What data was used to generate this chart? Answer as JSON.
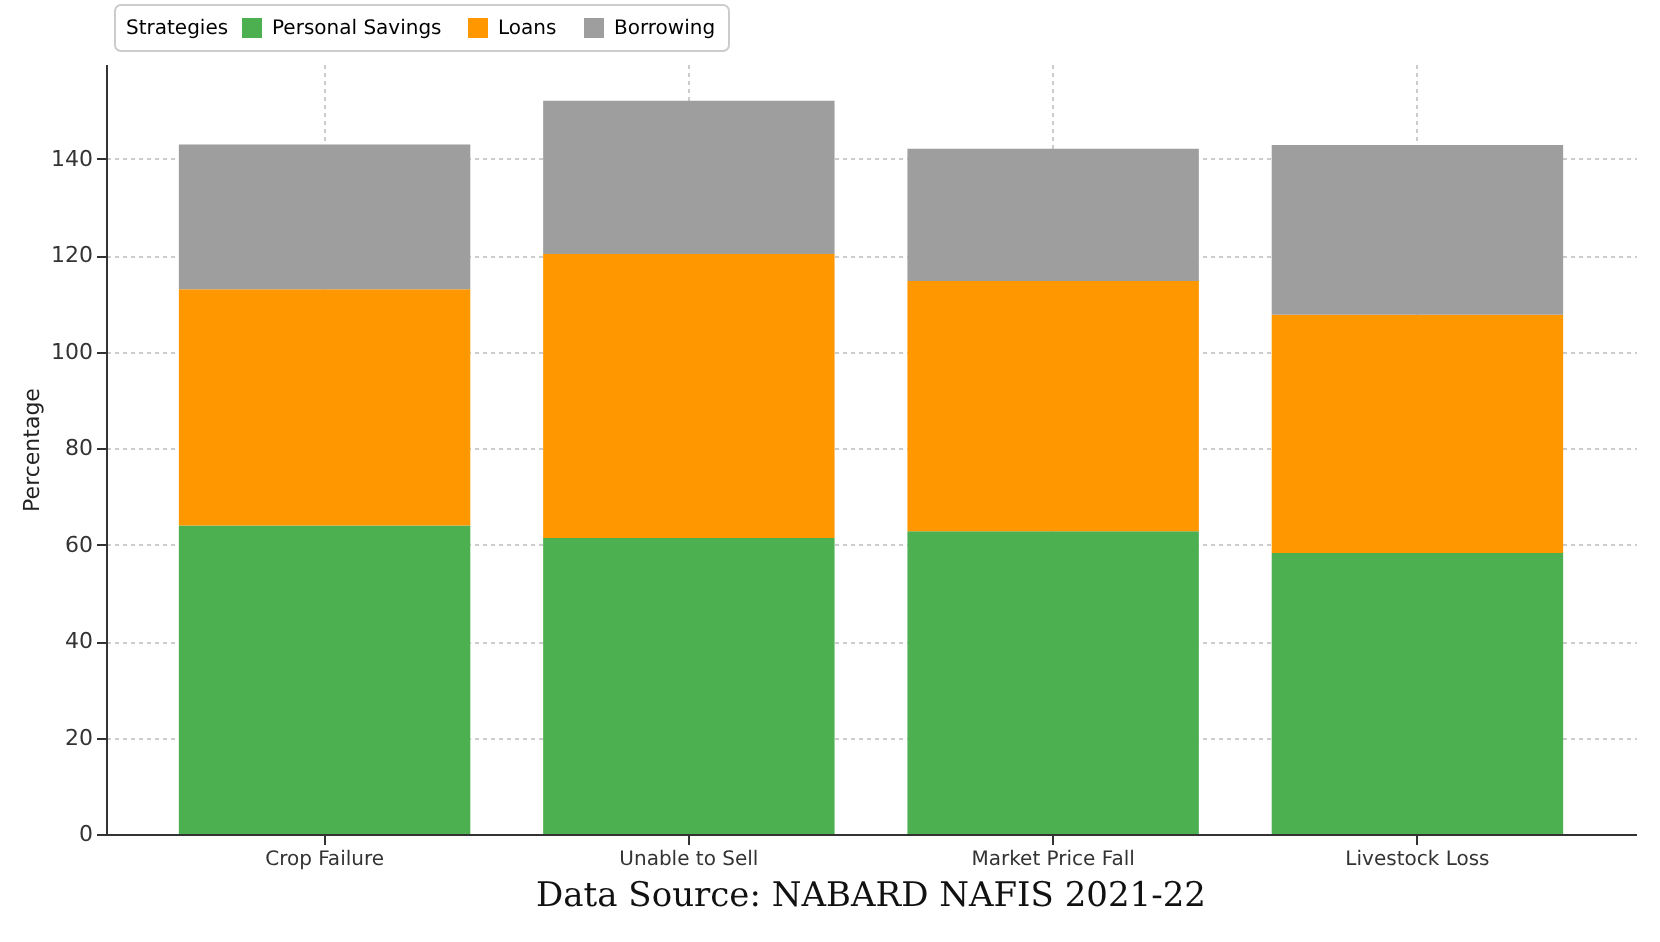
{
  "chart_data": {
    "type": "bar",
    "stacked": true,
    "ylabel": "Percentage",
    "legend_title": "Strategies",
    "legend": "top left",
    "grid": true,
    "categories": [
      "Crop Failure",
      "Unable to Sell",
      "Market Price Fall",
      "Livestock Loss"
    ],
    "series": [
      {
        "name": "Personal Savings",
        "color": "#4caf50",
        "values": [
          64,
          61.4,
          62.8,
          58.3
        ]
      },
      {
        "name": "Loans",
        "color": "#ff9800",
        "values": [
          49,
          58.9,
          51.9,
          49.4
        ]
      },
      {
        "name": "Borrowing",
        "color": "#9e9e9e",
        "values": [
          30,
          31.8,
          27.4,
          35.2
        ]
      }
    ],
    "ylim": [
      0,
      159.7
    ],
    "yticks": [
      0,
      20,
      40,
      60,
      80,
      100,
      120,
      140
    ],
    "annotations": [
      "Data Source: NABARD NAFIS 2021-22"
    ]
  }
}
